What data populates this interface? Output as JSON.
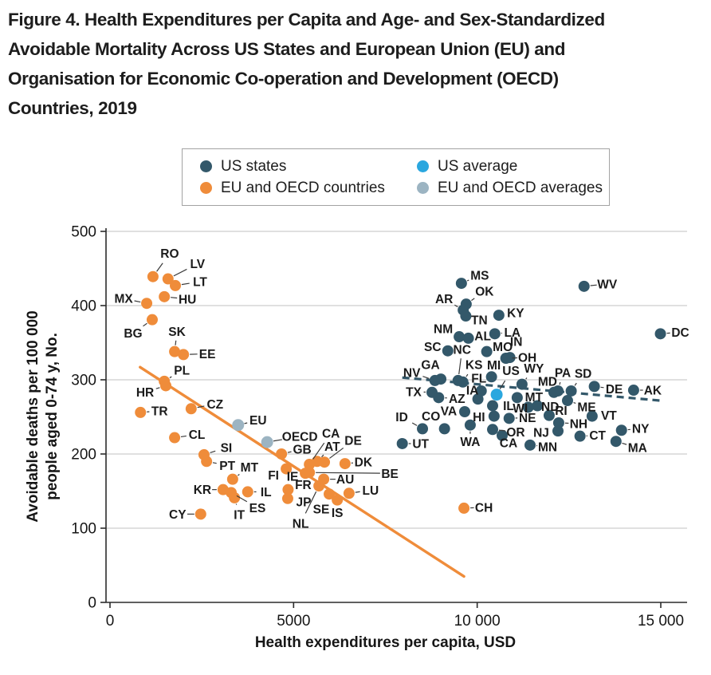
{
  "figure": {
    "title_lines": [
      "Figure 4. Health Expenditures per Capita and Age- and Sex-Standardized",
      "Avoidable Mortality Across US States and European Union (EU) and",
      "Organisation for Economic Co-operation and Development (OECD)",
      "Countries, 2019"
    ]
  },
  "legend": {
    "items": [
      {
        "label": "US states",
        "color": "#33586a"
      },
      {
        "label": "EU and OECD countries",
        "color": "#ef8c3a"
      },
      {
        "label": "US average",
        "color": "#2aa7df"
      },
      {
        "label": "EU and OECD averages",
        "color": "#9cb4c2"
      }
    ]
  },
  "chart_data": {
    "type": "scatter",
    "title": "Health Expenditures per Capita and Age- and Sex-Standardized Avoidable Mortality, 2019",
    "xlabel": "Health expenditures per capita, USD",
    "ylabel_lines": [
      "Avoidable deaths per 100 000",
      "people aged 0-74 y, No."
    ],
    "xlim": [
      0,
      15000
    ],
    "ylim": [
      0,
      500
    ],
    "xticks": {
      "values": [
        0,
        5000,
        10000,
        15000
      ],
      "labels": [
        "0",
        "5000",
        "10 000",
        "15 000"
      ]
    },
    "yticks": [
      0,
      100,
      200,
      300,
      400,
      500
    ],
    "grid": "horizontal",
    "legend_position": "top",
    "point_format": [
      "label",
      "x_usd",
      "y_deaths",
      "label_dx",
      "label_dy"
    ],
    "series": [
      {
        "name": "US states",
        "color": "#33586a",
        "points": [
          [
            "MS",
            9570,
            430,
            23,
            -10
          ],
          [
            "WV",
            12910,
            426,
            29,
            -3
          ],
          [
            "OK",
            9700,
            402,
            23,
            -16
          ],
          [
            "AR",
            9620,
            394,
            -24,
            -14
          ],
          [
            "TN",
            9690,
            386,
            17,
            5
          ],
          [
            "KY",
            10590,
            387,
            21,
            -3
          ],
          [
            "DC",
            14990,
            362,
            25,
            -2
          ],
          [
            "LA",
            10480,
            362,
            22,
            -2
          ],
          [
            "NM",
            9510,
            358,
            -20,
            -10
          ],
          [
            "AL",
            9760,
            356,
            18,
            -3
          ],
          [
            "SC",
            9200,
            339,
            -19,
            -5
          ],
          [
            "MO",
            10260,
            338,
            20,
            -6
          ],
          [
            "IN",
            10890,
            330,
            8,
            -20
          ],
          [
            "OH",
            10780,
            329,
            27,
            -1
          ],
          [
            "NC",
            9480,
            299,
            5,
            -39
          ],
          [
            "KS",
            9610,
            297,
            14,
            -22
          ],
          [
            "GA",
            9010,
            301,
            -13,
            -18
          ],
          [
            "NV",
            8850,
            299,
            -29,
            -10
          ],
          [
            "MI",
            10390,
            304,
            3,
            -15
          ],
          [
            "FL",
            10110,
            285,
            -3,
            -16
          ],
          [
            "WY",
            11220,
            294,
            15,
            -20
          ],
          [
            "PA",
            12200,
            285,
            6,
            -23
          ],
          [
            "SD",
            12560,
            285,
            15,
            -22
          ],
          [
            "MD",
            12090,
            283,
            -8,
            -14
          ],
          [
            "DE",
            13190,
            291,
            25,
            3
          ],
          [
            "AK",
            14260,
            286,
            24,
            0
          ],
          [
            "TX",
            8770,
            283,
            -23,
            -1
          ],
          [
            "AZ",
            8950,
            276,
            23,
            1
          ],
          [
            "IA",
            10020,
            274,
            -7,
            -11
          ],
          [
            "MT",
            11090,
            276,
            21,
            -1
          ],
          [
            "IL",
            10420,
            265,
            20,
            0
          ],
          [
            "WI",
            11390,
            263,
            -10,
            1
          ],
          [
            "ND",
            11640,
            265,
            16,
            1
          ],
          [
            "ME",
            12460,
            272,
            24,
            8
          ],
          [
            "RI",
            11960,
            252,
            15,
            -6
          ],
          [
            "VA",
            9660,
            257,
            -20,
            -1
          ],
          [
            "HI",
            10460,
            251,
            -19,
            1
          ],
          [
            "NE",
            10870,
            248,
            23,
            -1
          ],
          [
            "NH",
            12220,
            242,
            25,
            1
          ],
          [
            "NJ",
            12200,
            231,
            -21,
            2
          ],
          [
            "VT",
            13130,
            251,
            21,
            -1
          ],
          [
            "CT",
            12800,
            224,
            22,
            -1
          ],
          [
            "NY",
            13930,
            232,
            24,
            -2
          ],
          [
            "MA",
            13780,
            217,
            27,
            8
          ],
          [
            "MN",
            11440,
            212,
            22,
            2
          ],
          [
            "OR",
            10420,
            233,
            29,
            3
          ],
          [
            "CA",
            10680,
            225,
            8,
            9
          ],
          [
            "WA",
            9810,
            239,
            0,
            21
          ],
          [
            "CO",
            9110,
            234,
            -17,
            -16
          ],
          [
            "ID",
            8510,
            234,
            -26,
            -15
          ],
          [
            "UT",
            7960,
            214,
            23,
            0
          ]
        ]
      },
      {
        "name": "EU and OECD countries",
        "color": "#ef8c3a",
        "points": [
          [
            "RO",
            1170,
            439,
            21,
            -29
          ],
          [
            "LV",
            1580,
            436,
            37,
            -19
          ],
          [
            "LT",
            1780,
            427,
            31,
            -5
          ],
          [
            "HU",
            1480,
            412,
            29,
            3
          ],
          [
            "MX",
            1000,
            403,
            -29,
            -6
          ],
          [
            "BG",
            1150,
            381,
            -24,
            17
          ],
          [
            "SK",
            1760,
            338,
            3,
            -25
          ],
          [
            "EE",
            2000,
            334,
            30,
            -1
          ],
          [
            "PL",
            1480,
            298,
            22,
            -14
          ],
          [
            "HR",
            1520,
            292,
            -26,
            8
          ],
          [
            "TR",
            830,
            256,
            24,
            -2
          ],
          [
            "CZ",
            2210,
            261,
            30,
            -6
          ],
          [
            "CL",
            1760,
            222,
            28,
            -4
          ],
          [
            "SI",
            2560,
            199,
            28,
            -9
          ],
          [
            "PT",
            2630,
            190,
            26,
            5
          ],
          [
            "MT",
            3340,
            166,
            21,
            -15
          ],
          [
            "KR",
            3080,
            152,
            -26,
            0
          ],
          [
            "IL",
            3750,
            149,
            23,
            0
          ],
          [
            "ES",
            3300,
            148,
            33,
            19
          ],
          [
            "IT",
            3390,
            141,
            6,
            21
          ],
          [
            "CY",
            2470,
            119,
            -29,
            0
          ],
          [
            "GB",
            4670,
            200,
            26,
            -6
          ],
          [
            "FI",
            4800,
            180,
            -16,
            8
          ],
          [
            "IE",
            5320,
            174,
            -16,
            4
          ],
          [
            "BE",
            5430,
            175,
            101,
            1
          ],
          [
            "FR",
            4850,
            152,
            19,
            -6
          ],
          [
            "JP",
            4840,
            140,
            20,
            4
          ],
          [
            "NL",
            5690,
            157,
            -23,
            47
          ],
          [
            "SE",
            5970,
            146,
            -10,
            19
          ],
          [
            "IS",
            6190,
            138,
            0,
            16
          ],
          [
            "AU",
            5820,
            166,
            27,
            0
          ],
          [
            "LU",
            6510,
            147,
            27,
            -4
          ],
          [
            "CA",
            5430,
            186,
            27,
            -39
          ],
          [
            "AT",
            5640,
            190,
            19,
            -19
          ],
          [
            "DE",
            5840,
            189,
            36,
            -27
          ],
          [
            "DK",
            6400,
            187,
            23,
            -2
          ],
          [
            "CH",
            9640,
            127,
            25,
            -1
          ]
        ]
      },
      {
        "name": "US average",
        "color": "#2aa7df",
        "points": [
          [
            "US",
            10530,
            280,
            18,
            -30
          ]
        ]
      },
      {
        "name": "EU and OECD averages",
        "color": "#9cb4c2",
        "points": [
          [
            "EU",
            3490,
            239,
            25,
            -6
          ],
          [
            "OECD",
            4280,
            216,
            41,
            -7
          ]
        ]
      }
    ],
    "trendlines": [
      {
        "series": "EU and OECD countries",
        "color": "#ef8c3a",
        "style": "solid",
        "x1": 820,
        "y1": 317,
        "x2": 9640,
        "y2": 35
      },
      {
        "series": "US states",
        "color": "#33586a",
        "style": "dashed",
        "x1": 7960,
        "y1": 303,
        "x2": 14980,
        "y2": 272
      }
    ]
  }
}
